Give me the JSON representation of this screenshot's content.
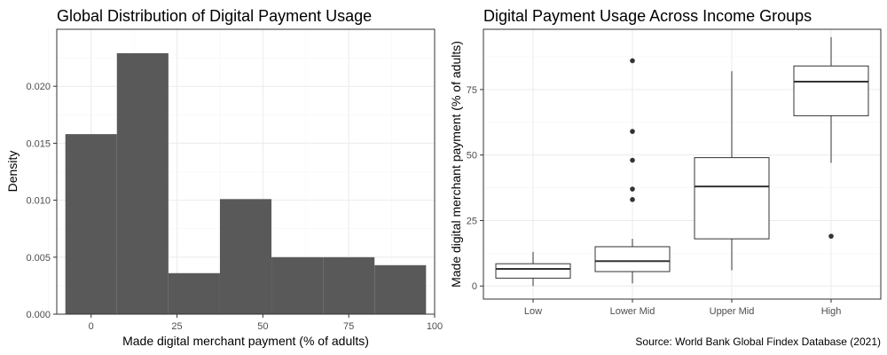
{
  "chart_data": [
    {
      "type": "histogram",
      "title": "Global Distribution of Digital Payment Usage",
      "xlabel": "Made digital merchant payment (% of adults)",
      "ylabel": "Density",
      "xlim": [
        -10,
        100
      ],
      "ylim": [
        0,
        0.025
      ],
      "x_ticks": [
        0,
        25,
        50,
        75,
        100
      ],
      "y_ticks": [
        0.0,
        0.005,
        0.01,
        0.015,
        0.02
      ],
      "y_tick_labels": [
        "0.000",
        "0.005",
        "0.010",
        "0.015",
        "0.020"
      ],
      "grid": true,
      "bar_color": "#595959",
      "bins": [
        {
          "x0": -7.5,
          "x1": 7.5,
          "density": 0.0158
        },
        {
          "x0": 7.5,
          "x1": 22.5,
          "density": 0.0229
        },
        {
          "x0": 22.5,
          "x1": 37.5,
          "density": 0.0036
        },
        {
          "x0": 37.5,
          "x1": 52.5,
          "density": 0.0101
        },
        {
          "x0": 52.5,
          "x1": 67.5,
          "density": 0.005
        },
        {
          "x0": 67.5,
          "x1": 82.5,
          "density": 0.005
        },
        {
          "x0": 82.5,
          "x1": 97.5,
          "density": 0.0043
        }
      ]
    },
    {
      "type": "boxplot",
      "title": "Digital Payment Usage Across Income Groups",
      "xlabel": "",
      "ylabel": "Made digital merchant payment (% of adults)",
      "ylim": [
        -5,
        98
      ],
      "y_ticks": [
        0,
        25,
        50,
        75
      ],
      "grid": true,
      "categories": [
        "Low",
        "Lower Mid",
        "Upper Mid",
        "High"
      ],
      "boxes": [
        {
          "category": "Low",
          "whisker_low": 0,
          "q1": 3,
          "median": 6.5,
          "q3": 8.5,
          "whisker_high": 13,
          "outliers": []
        },
        {
          "category": "Lower Mid",
          "whisker_low": 1,
          "q1": 5.5,
          "median": 9.5,
          "q3": 15,
          "whisker_high": 18,
          "outliers": [
            33,
            37,
            48,
            59,
            86
          ]
        },
        {
          "category": "Upper Mid",
          "whisker_low": 6,
          "q1": 18,
          "median": 38,
          "q3": 49,
          "whisker_high": 82,
          "outliers": []
        },
        {
          "category": "High",
          "whisker_low": 47,
          "q1": 65,
          "median": 78,
          "q3": 84,
          "whisker_high": 95,
          "outliers": [
            19
          ]
        }
      ]
    }
  ],
  "caption": "Source: World Bank Global Findex Database (2021)"
}
